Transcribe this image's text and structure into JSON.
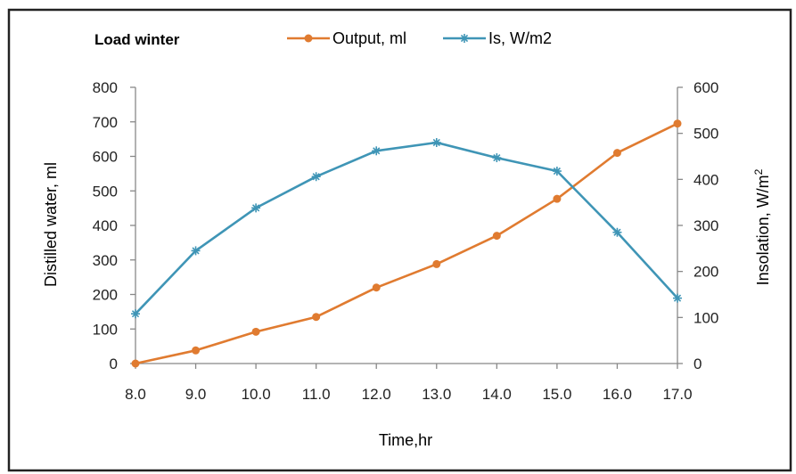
{
  "chart_data": {
    "type": "line",
    "title": "Load winter",
    "xlabel": "Time,hr",
    "ylabel": "Distilled water, ml",
    "y2label": "Insolation, W/m",
    "y2label_sup": "2",
    "x": [
      8.0,
      9.0,
      10.0,
      11.0,
      12.0,
      13.0,
      14.0,
      15.0,
      16.0,
      17.0
    ],
    "x_tick_labels": [
      "8.0",
      "9.0",
      "10.0",
      "11.0",
      "12.0",
      "13.0",
      "14.0",
      "15.0",
      "16.0",
      "17.0"
    ],
    "ylim": [
      0,
      800
    ],
    "y_ticks": [
      0,
      100,
      200,
      300,
      400,
      500,
      600,
      700,
      800
    ],
    "y2lim": [
      0,
      600
    ],
    "y2_ticks": [
      0,
      100,
      200,
      300,
      400,
      500,
      600
    ],
    "grid": false,
    "legend_position": "top",
    "series": [
      {
        "name": "Output, ml",
        "axis": "left",
        "color": "#e07b30",
        "marker": "circle",
        "values": [
          0,
          38,
          92,
          135,
          220,
          288,
          370,
          477,
          610,
          695
        ]
      },
      {
        "name": "Is, W/m2",
        "axis": "right",
        "color": "#3f95b6",
        "marker": "asterisk",
        "values": [
          108,
          245,
          338,
          406,
          462,
          480,
          447,
          418,
          285,
          142
        ]
      }
    ]
  }
}
